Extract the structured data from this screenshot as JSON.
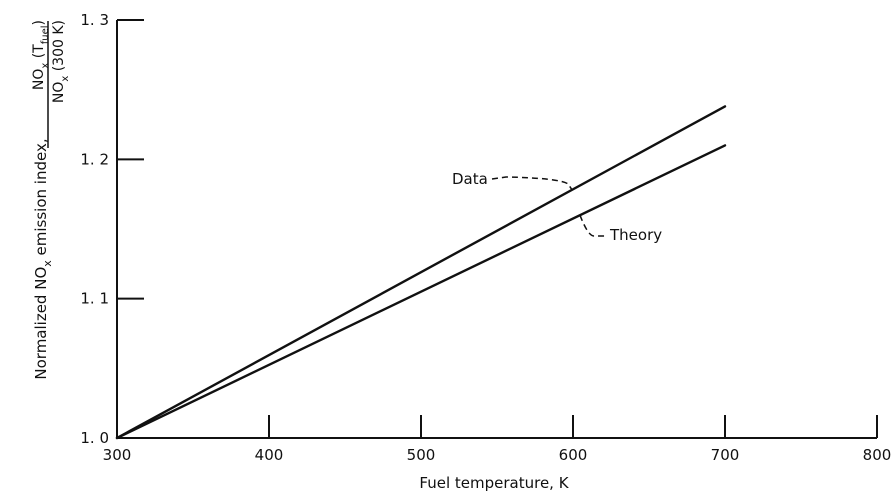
{
  "chart_data": {
    "type": "line",
    "title": "",
    "xlabel": "Fuel temperature,  K",
    "ylabel": {
      "main": "Normalized NO",
      "main_sub": "x",
      "main_rest": " emission index,",
      "numerator": "NO",
      "numerator_sub": "x",
      "numerator_rest": " (T",
      "numerator_rest_sub": "fuel",
      "numerator_close": ")",
      "denominator": "NO",
      "denominator_sub": "x",
      "denominator_rest": " (300 K)"
    },
    "xlim": [
      300,
      800
    ],
    "ylim": [
      1.0,
      1.3
    ],
    "xticks": [
      300,
      400,
      500,
      600,
      700,
      800
    ],
    "yticks": [
      1.0,
      1.1,
      1.2,
      1.3
    ],
    "xtick_labels": [
      "300",
      "400",
      "500",
      "600",
      "700",
      "800"
    ],
    "ytick_labels": [
      "1. 0",
      "1. 1",
      "1. 2",
      "1. 3"
    ],
    "grid": false,
    "series": [
      {
        "name": "Data",
        "x": [
          300,
          700
        ],
        "y": [
          1.0,
          1.238
        ]
      },
      {
        "name": "Theory",
        "x": [
          300,
          700
        ],
        "y": [
          1.0,
          1.21
        ]
      }
    ],
    "annotations": [
      {
        "label": "Data",
        "series": "Data"
      },
      {
        "label": "Theory",
        "series": "Theory"
      }
    ],
    "colors": {
      "line": "#111111",
      "background": "#ffffff"
    }
  }
}
